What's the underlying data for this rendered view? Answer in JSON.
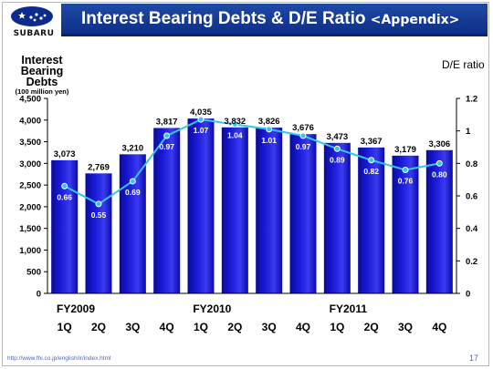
{
  "header": {
    "logo_text": "SUBARU",
    "title": "Interest Bearing Debts & D/E Ratio",
    "title_suffix": "<Appendix>"
  },
  "axes": {
    "left_label_line1": "Interest",
    "left_label_line2": "Bearing Debts",
    "left_unit": "(100 million yen)",
    "right_label": "D/E ratio"
  },
  "footer": {
    "url": "http://www.fhi.co.jp/english/ir/index.html",
    "page": "17"
  },
  "colors": {
    "bar": "#1a1ad8",
    "line": "#33c6ee",
    "title_bar": "#1a3f9f"
  },
  "chart_data": {
    "type": "bar",
    "categories": [
      "1Q",
      "2Q",
      "3Q",
      "4Q",
      "1Q",
      "2Q",
      "3Q",
      "4Q",
      "1Q",
      "2Q",
      "3Q",
      "4Q"
    ],
    "category_groups": [
      {
        "label": "FY2009",
        "start": 0
      },
      {
        "label": "FY2010",
        "start": 4
      },
      {
        "label": "FY2011",
        "start": 8
      }
    ],
    "series": [
      {
        "name": "Interest Bearing Debts",
        "type": "bar",
        "axis": "left",
        "values": [
          3073,
          2769,
          3210,
          3817,
          4035,
          3832,
          3826,
          3676,
          3473,
          3367,
          3179,
          3306
        ],
        "labels": [
          "3,073",
          "2,769",
          "3,210",
          "3,817",
          "4,035",
          "3,832",
          "3,826",
          "3,676",
          "3,473",
          "3,367",
          "3,179",
          "3,306"
        ]
      },
      {
        "name": "D/E ratio",
        "type": "line",
        "axis": "right",
        "values": [
          0.66,
          0.55,
          0.69,
          0.97,
          1.07,
          1.04,
          1.01,
          0.97,
          0.89,
          0.82,
          0.76,
          0.8
        ],
        "labels": [
          "0.66",
          "0.55",
          "0.69",
          "0.97",
          "1.07",
          "1.04",
          "1.01",
          "0.97",
          "0.89",
          "0.82",
          "0.76",
          "0.80"
        ]
      }
    ],
    "ylim_left": [
      0,
      4500
    ],
    "yticks_left": [
      "0",
      "500",
      "1,000",
      "1,500",
      "2,000",
      "2,500",
      "3,000",
      "3,500",
      "4,000",
      "4,500"
    ],
    "ylim_right": [
      0,
      1.2
    ],
    "yticks_right": [
      "0",
      "0.2",
      "0.4",
      "0.6",
      "0.8",
      "1",
      "1.2"
    ],
    "grid": false
  }
}
